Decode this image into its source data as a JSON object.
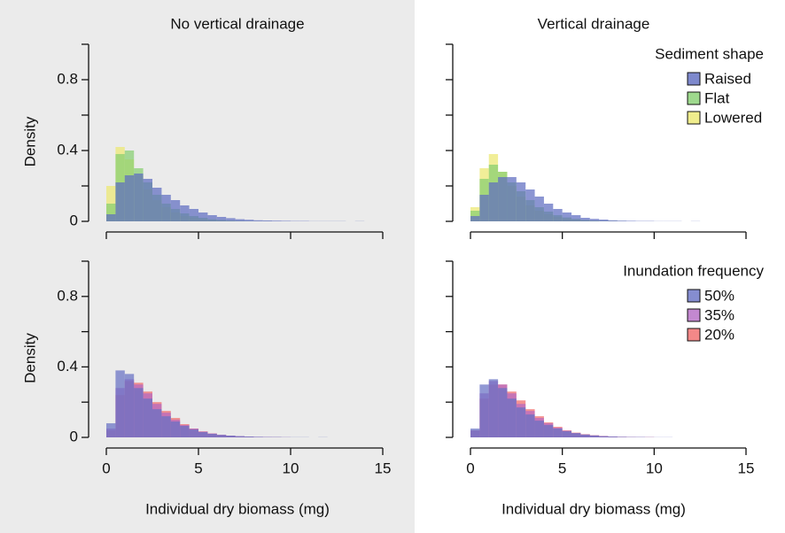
{
  "chart_data": [
    {
      "type": "histogram",
      "title": "No vertical drainage",
      "ylabel": "Density",
      "bins": [
        0,
        0.5,
        1,
        1.5,
        2,
        2.5,
        3,
        3.5,
        4,
        4.5,
        5,
        5.5,
        6,
        6.5,
        7,
        7.5,
        8,
        8.5,
        9,
        9.5,
        10,
        10.5,
        11,
        11.5,
        12,
        12.5,
        13,
        13.5,
        14,
        14.5,
        15
      ],
      "series": [
        {
          "color": "#5e6cc0",
          "values": [
            0.04,
            0.22,
            0.26,
            0.27,
            0.24,
            0.19,
            0.15,
            0.12,
            0.09,
            0.07,
            0.05,
            0.035,
            0.025,
            0.018,
            0.012,
            0.009,
            0.006,
            0.005,
            0.004,
            0.003,
            0.002,
            0.002,
            0.001,
            0.001,
            0.001,
            0.001,
            0,
            0.001,
            0,
            0
          ]
        },
        {
          "color": "#86cf70",
          "values": [
            0.1,
            0.38,
            0.4,
            0.3,
            0.22,
            0.15,
            0.1,
            0.07,
            0.045,
            0.03,
            0.02,
            0.012,
            0.008,
            0.005,
            0.003,
            0.002,
            0.001,
            0.001,
            0,
            0,
            0,
            0,
            0,
            0,
            0,
            0,
            0,
            0,
            0,
            0
          ]
        },
        {
          "color": "#ece870",
          "values": [
            0.2,
            0.42,
            0.35,
            0.26,
            0.18,
            0.12,
            0.08,
            0.05,
            0.03,
            0.02,
            0.012,
            0.007,
            0.004,
            0.002,
            0.001,
            0,
            0,
            0,
            0,
            0,
            0,
            0,
            0,
            0,
            0,
            0,
            0,
            0,
            0,
            0
          ]
        }
      ],
      "xlim": [
        0,
        15
      ],
      "xticks": [
        0,
        5,
        10,
        15
      ],
      "xtick_labels": false,
      "ylim": [
        0,
        1.0
      ],
      "yticks": [
        0,
        0.4,
        0.8
      ],
      "minor_yticks": [
        0.2,
        0.6,
        1.0
      ]
    },
    {
      "type": "histogram",
      "title": "Vertical drainage",
      "bins": [
        0,
        0.5,
        1,
        1.5,
        2,
        2.5,
        3,
        3.5,
        4,
        4.5,
        5,
        5.5,
        6,
        6.5,
        7,
        7.5,
        8,
        8.5,
        9,
        9.5,
        10,
        10.5,
        11,
        11.5,
        12,
        12.5,
        13,
        13.5,
        14,
        14.5,
        15
      ],
      "legend_title": "Sediment shape",
      "legend": "upper right",
      "series": [
        {
          "name": "Raised",
          "color": "#5e6cc0",
          "values": [
            0.03,
            0.15,
            0.22,
            0.25,
            0.25,
            0.22,
            0.18,
            0.14,
            0.1,
            0.07,
            0.05,
            0.035,
            0.02,
            0.014,
            0.01,
            0.006,
            0.004,
            0.003,
            0.002,
            0.002,
            0.001,
            0.001,
            0.001,
            0,
            0.001,
            0,
            0,
            0,
            0,
            0
          ]
        },
        {
          "name": "Flat",
          "color": "#86cf70",
          "values": [
            0.06,
            0.24,
            0.32,
            0.28,
            0.22,
            0.17,
            0.12,
            0.08,
            0.055,
            0.035,
            0.022,
            0.014,
            0.008,
            0.005,
            0.003,
            0.002,
            0.001,
            0,
            0,
            0,
            0,
            0,
            0,
            0,
            0,
            0,
            0,
            0,
            0,
            0
          ]
        },
        {
          "name": "Lowered",
          "color": "#ece870",
          "values": [
            0.08,
            0.3,
            0.38,
            0.28,
            0.2,
            0.14,
            0.09,
            0.06,
            0.04,
            0.025,
            0.015,
            0.009,
            0.005,
            0.003,
            0.002,
            0.001,
            0,
            0,
            0,
            0,
            0,
            0,
            0,
            0,
            0,
            0,
            0,
            0,
            0,
            0
          ]
        }
      ],
      "xlim": [
        0,
        15
      ],
      "xticks": [
        0,
        5,
        10,
        15
      ],
      "xtick_labels": false,
      "ylim": [
        0,
        1.0
      ],
      "yticks": [
        0,
        0.4,
        0.8
      ],
      "ytick_labels": false,
      "minor_yticks": [
        0.2,
        0.6,
        1.0
      ]
    },
    {
      "type": "histogram",
      "ylabel": "Density",
      "xlabel": "Individual dry biomass (mg)",
      "bins": [
        0,
        0.5,
        1,
        1.5,
        2,
        2.5,
        3,
        3.5,
        4,
        4.5,
        5,
        5.5,
        6,
        6.5,
        7,
        7.5,
        8,
        8.5,
        9,
        9.5,
        10,
        10.5,
        11,
        11.5,
        12,
        12.5,
        13,
        13.5,
        14,
        14.5,
        15
      ],
      "series": [
        {
          "color": "#6670c4",
          "values": [
            0.08,
            0.38,
            0.36,
            0.28,
            0.22,
            0.16,
            0.12,
            0.09,
            0.065,
            0.045,
            0.03,
            0.02,
            0.014,
            0.01,
            0.007,
            0.005,
            0.003,
            0.002,
            0.002,
            0.001,
            0.001,
            0.001,
            0,
            0.001,
            0,
            0,
            0,
            0,
            0,
            0
          ]
        },
        {
          "color": "#b46ac4",
          "values": [
            0.05,
            0.28,
            0.33,
            0.3,
            0.25,
            0.19,
            0.14,
            0.1,
            0.07,
            0.05,
            0.033,
            0.022,
            0.015,
            0.01,
            0.006,
            0.004,
            0.003,
            0.002,
            0.001,
            0.001,
            0,
            0,
            0,
            0,
            0,
            0,
            0,
            0,
            0,
            0
          ]
        },
        {
          "color": "#f06a6a",
          "values": [
            0.04,
            0.24,
            0.32,
            0.31,
            0.26,
            0.2,
            0.15,
            0.11,
            0.075,
            0.05,
            0.034,
            0.022,
            0.014,
            0.009,
            0.006,
            0.004,
            0.002,
            0.001,
            0.001,
            0,
            0,
            0,
            0,
            0,
            0,
            0,
            0,
            0,
            0,
            0
          ]
        }
      ],
      "xlim": [
        0,
        15
      ],
      "xticks": [
        0,
        5,
        10,
        15
      ],
      "xtick_labels": true,
      "ylim": [
        0,
        1.0
      ],
      "yticks": [
        0,
        0.4,
        0.8
      ],
      "minor_yticks": [
        0.2,
        0.6,
        1.0
      ]
    },
    {
      "type": "histogram",
      "xlabel": "Individual dry biomass (mg)",
      "bins": [
        0,
        0.5,
        1,
        1.5,
        2,
        2.5,
        3,
        3.5,
        4,
        4.5,
        5,
        5.5,
        6,
        6.5,
        7,
        7.5,
        8,
        8.5,
        9,
        9.5,
        10,
        10.5,
        11,
        11.5,
        12,
        12.5,
        13,
        13.5,
        14,
        14.5,
        15
      ],
      "legend_title": "Inundation frequency",
      "legend": "upper right",
      "series": [
        {
          "name": "50%",
          "color": "#6670c4",
          "values": [
            0.05,
            0.3,
            0.33,
            0.28,
            0.22,
            0.17,
            0.13,
            0.095,
            0.07,
            0.05,
            0.035,
            0.024,
            0.016,
            0.011,
            0.007,
            0.005,
            0.003,
            0.002,
            0.002,
            0.001,
            0.001,
            0.001,
            0,
            0,
            0,
            0,
            0,
            0,
            0,
            0
          ]
        },
        {
          "name": "35%",
          "color": "#b46ac4",
          "values": [
            0.04,
            0.25,
            0.32,
            0.3,
            0.25,
            0.19,
            0.15,
            0.11,
            0.08,
            0.055,
            0.038,
            0.025,
            0.016,
            0.011,
            0.007,
            0.004,
            0.003,
            0.002,
            0.001,
            0.001,
            0,
            0,
            0,
            0,
            0,
            0,
            0,
            0,
            0,
            0
          ]
        },
        {
          "name": "20%",
          "color": "#f06a6a",
          "values": [
            0.04,
            0.22,
            0.3,
            0.3,
            0.26,
            0.21,
            0.16,
            0.12,
            0.085,
            0.06,
            0.04,
            0.027,
            0.018,
            0.012,
            0.008,
            0.005,
            0.003,
            0.002,
            0.001,
            0.001,
            0,
            0,
            0,
            0,
            0,
            0,
            0,
            0,
            0,
            0
          ]
        }
      ],
      "xlim": [
        0,
        15
      ],
      "xticks": [
        0,
        5,
        10,
        15
      ],
      "xtick_labels": true,
      "ylim": [
        0,
        1.0
      ],
      "yticks": [
        0,
        0.4,
        0.8
      ],
      "ytick_labels": false,
      "minor_yticks": [
        0.2,
        0.6,
        1.0
      ]
    }
  ]
}
